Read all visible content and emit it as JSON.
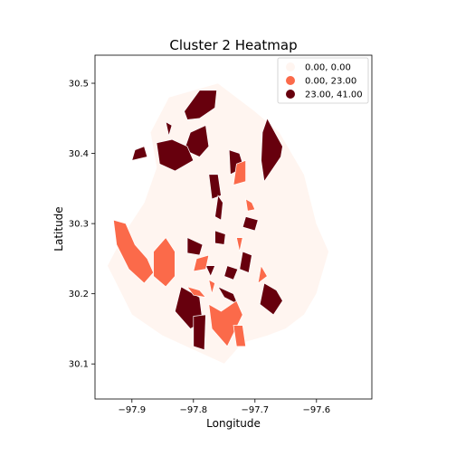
{
  "chart_data": {
    "type": "choropleth",
    "title": "Cluster 2 Heatmap",
    "xlabel": "Longitude",
    "ylabel": "Latitude",
    "xlim": [
      -97.96,
      -97.51
    ],
    "ylim": [
      30.05,
      30.54
    ],
    "xticks": [
      -97.9,
      -97.8,
      -97.7,
      -97.6
    ],
    "yticks": [
      30.1,
      30.2,
      30.3,
      30.4,
      30.5
    ],
    "xtick_labels": [
      "−97.9",
      "−97.8",
      "−97.7",
      "−97.6"
    ],
    "ytick_labels": [
      "30.1",
      "30.2",
      "30.3",
      "30.4",
      "30.5"
    ],
    "grid": false,
    "legend": {
      "placement": "top-right",
      "entries": [
        {
          "label": "0.00,  0.00",
          "color": "#fff5f0"
        },
        {
          "label": "0.00, 23.00",
          "color": "#fb6a4a"
        },
        {
          "label": "23.00, 41.00",
          "color": "#67000d"
        }
      ]
    },
    "regions": [
      {
        "class": 2,
        "lon": [
          -97.815,
          -97.79,
          -97.762,
          -97.765,
          -97.79,
          -97.81
        ],
        "lat": [
          30.46,
          30.49,
          30.49,
          30.465,
          30.45,
          30.448
        ]
      },
      {
        "class": 2,
        "lon": [
          -97.805,
          -97.78,
          -97.775,
          -97.79,
          -97.815
        ],
        "lat": [
          30.43,
          30.44,
          30.41,
          30.395,
          30.405
        ]
      },
      {
        "class": 2,
        "lon": [
          -97.86,
          -97.835,
          -97.81,
          -97.8,
          -97.83,
          -97.855
        ],
        "lat": [
          30.415,
          30.42,
          30.41,
          30.39,
          30.375,
          30.385
        ]
      },
      {
        "class": 2,
        "lon": [
          -97.895,
          -97.88,
          -97.875,
          -97.9
        ],
        "lat": [
          30.405,
          30.41,
          30.395,
          30.39
        ]
      },
      {
        "class": 2,
        "lon": [
          -97.845,
          -97.835,
          -97.84
        ],
        "lat": [
          30.445,
          30.44,
          30.425
        ]
      },
      {
        "class": 2,
        "lon": [
          -97.742,
          -97.725,
          -97.718,
          -97.74
        ],
        "lat": [
          30.405,
          30.4,
          30.38,
          30.37
        ]
      },
      {
        "class": 2,
        "lon": [
          -97.68,
          -97.655,
          -97.658,
          -97.685,
          -97.69,
          -97.688
        ],
        "lat": [
          30.45,
          30.41,
          30.395,
          30.36,
          30.39,
          30.43
        ]
      },
      {
        "class": 2,
        "lon": [
          -97.775,
          -97.76,
          -97.755,
          -97.77
        ],
        "lat": [
          30.37,
          30.37,
          30.34,
          30.335
        ]
      },
      {
        "class": 2,
        "lon": [
          -97.76,
          -97.752,
          -97.755,
          -97.765
        ],
        "lat": [
          30.34,
          30.33,
          30.305,
          30.31
        ]
      },
      {
        "class": 2,
        "lon": [
          -97.715,
          -97.695,
          -97.7,
          -97.72
        ],
        "lat": [
          30.31,
          30.305,
          30.29,
          30.295
        ]
      },
      {
        "class": 2,
        "lon": [
          -97.81,
          -97.785,
          -97.79,
          -97.81
        ],
        "lat": [
          30.28,
          30.27,
          30.255,
          30.258
        ]
      },
      {
        "class": 2,
        "lon": [
          -97.765,
          -97.748,
          -97.75,
          -97.765
        ],
        "lat": [
          30.29,
          30.285,
          30.27,
          30.272
        ]
      },
      {
        "class": 2,
        "lon": [
          -97.72,
          -97.705,
          -97.71,
          -97.725
        ],
        "lat": [
          30.26,
          30.255,
          30.23,
          30.235
        ]
      },
      {
        "class": 2,
        "lon": [
          -97.745,
          -97.728,
          -97.735,
          -97.75
        ],
        "lat": [
          30.24,
          30.235,
          30.22,
          30.225
        ]
      },
      {
        "class": 2,
        "lon": [
          -97.82,
          -97.79,
          -97.785,
          -97.805,
          -97.83
        ],
        "lat": [
          30.21,
          30.195,
          30.16,
          30.15,
          30.175
        ]
      },
      {
        "class": 2,
        "lon": [
          -97.8,
          -97.78,
          -97.782,
          -97.8
        ],
        "lat": [
          30.168,
          30.17,
          30.12,
          30.125
        ]
      },
      {
        "class": 2,
        "lon": [
          -97.76,
          -97.735,
          -97.728,
          -97.75
        ],
        "lat": [
          30.21,
          30.2,
          30.185,
          30.195
        ]
      },
      {
        "class": 2,
        "lon": [
          -97.685,
          -97.665,
          -97.655,
          -97.67,
          -97.692
        ],
        "lat": [
          30.215,
          30.205,
          30.19,
          30.17,
          30.185
        ]
      },
      {
        "class": 2,
        "lon": [
          -97.78,
          -97.765,
          -97.772
        ],
        "lat": [
          30.24,
          30.24,
          30.225
        ]
      },
      {
        "class": 1,
        "lon": [
          -97.93,
          -97.91,
          -97.895,
          -97.875,
          -97.865,
          -97.88,
          -97.905,
          -97.925
        ],
        "lat": [
          30.305,
          30.3,
          30.27,
          30.25,
          30.23,
          30.215,
          30.235,
          30.27
        ]
      },
      {
        "class": 1,
        "lon": [
          -97.865,
          -97.845,
          -97.83,
          -97.83,
          -97.845,
          -97.865
        ],
        "lat": [
          30.26,
          30.28,
          30.26,
          30.225,
          30.21,
          30.225
        ]
      },
      {
        "class": 1,
        "lon": [
          -97.73,
          -97.715,
          -97.715,
          -97.735
        ],
        "lat": [
          30.385,
          30.39,
          30.36,
          30.355
        ]
      },
      {
        "class": 1,
        "lon": [
          -97.715,
          -97.705,
          -97.7,
          -97.712
        ],
        "lat": [
          30.335,
          30.33,
          30.32,
          30.318
        ]
      },
      {
        "class": 1,
        "lon": [
          -97.73,
          -97.72,
          -97.725
        ],
        "lat": [
          30.28,
          30.28,
          30.26
        ]
      },
      {
        "class": 1,
        "lon": [
          -97.69,
          -97.68,
          -97.695
        ],
        "lat": [
          30.24,
          30.225,
          30.215
        ]
      },
      {
        "class": 1,
        "lon": [
          -97.795,
          -97.775,
          -97.78,
          -97.8
        ],
        "lat": [
          30.25,
          30.255,
          30.235,
          30.232
        ]
      },
      {
        "class": 1,
        "lon": [
          -97.81,
          -97.79,
          -97.78,
          -97.8
        ],
        "lat": [
          30.21,
          30.205,
          30.195,
          30.198
        ]
      },
      {
        "class": 1,
        "lon": [
          -97.775,
          -97.765,
          -97.77
        ],
        "lat": [
          30.22,
          30.215,
          30.2
        ]
      },
      {
        "class": 1,
        "lon": [
          -97.775,
          -97.755,
          -97.73,
          -97.72,
          -97.745,
          -97.77
        ],
        "lat": [
          30.185,
          30.175,
          30.19,
          30.17,
          30.125,
          30.15
        ]
      },
      {
        "class": 1,
        "lon": [
          -97.735,
          -97.72,
          -97.715,
          -97.73
        ],
        "lat": [
          30.155,
          30.155,
          30.125,
          30.125
        ]
      }
    ]
  }
}
